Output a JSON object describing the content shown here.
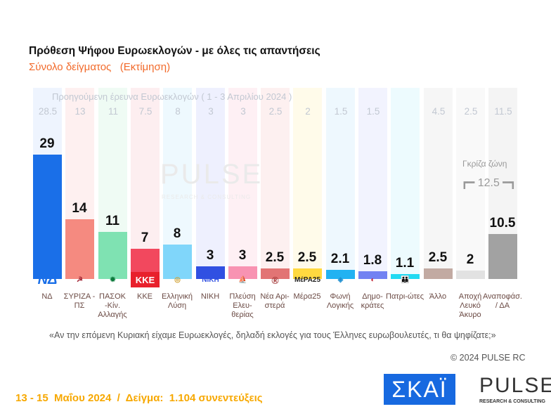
{
  "chart_data": {
    "type": "bar",
    "title": "Πρόθεση Ψήφου Ευρωεκλογών - με όλες τις απαντήσεις",
    "subtitle": "Σύνολο δείγματος   (Εκτίμηση)",
    "previous_label": "Προηγούμενη έρευνα Ευρωεκλογών ( 1 - 3 Απριλίου 2024 )",
    "categories": [
      "ΝΔ",
      "ΣΥΡΙΖΑ - ΠΣ",
      "ΠΑΣΟΚ -Κίν. Αλλαγής",
      "ΚΚΕ",
      "Ελληνική Λύση",
      "ΝΙΚΗ",
      "Πλεύση Ελευ-θερίας",
      "Νέα Αρι-στερά",
      "Μέρα25",
      "Φωνή Λογικής",
      "Δημο-κράτες",
      "Πατρι-ώτες",
      "Άλλο",
      "Αποχή Λευκό Άκυρο",
      "Αναποφάσ. / ΔΑ"
    ],
    "values": [
      29,
      14,
      11,
      7,
      8,
      3,
      3,
      2.5,
      2.5,
      2.1,
      1.8,
      1.1,
      2.5,
      2,
      10.5
    ],
    "value_labels": [
      "29",
      "14",
      "11",
      "7",
      "8",
      "3",
      "3",
      "2.5",
      "2.5",
      "2.1",
      "1.8",
      "1.1",
      "2.5",
      "2",
      "10.5"
    ],
    "previous": [
      "28.5",
      "13",
      "11",
      "7.5",
      "8",
      "3",
      "3",
      "2.5",
      "2",
      "1.5",
      "1.5",
      "",
      "4.5",
      "2.5",
      "11.5"
    ],
    "colors": [
      "#1a6fe8",
      "#f58a80",
      "#7fe2b2",
      "#f2485e",
      "#80d6fa",
      "#3050e2",
      "#f893b2",
      "#e27474",
      "#ffd940",
      "#22b2f2",
      "#7282f2",
      "#22daf2",
      "#c2aaa2",
      "#e2e2e2",
      "#a2a2a2"
    ],
    "band_colors": [
      "#eef4fe",
      "#fef0f0",
      "#effbf4",
      "#fdeef0",
      "#eef9fe",
      "#eef0fe",
      "#fef0f4",
      "#fdf0f0",
      "#fffbea",
      "#eef8fe",
      "#f2f3fe",
      "#edfbfe",
      "#f6f6f6",
      "#f9f9f9",
      "#f4f4f4"
    ],
    "logos": [
      "ΝΔ",
      "☭",
      "✹",
      "ΚΚΕ",
      "◎",
      "ΝΙΚΗ",
      "⛵",
      "Ⓡ",
      "ΜέΡΑ25",
      "◈",
      "◐",
      "👪",
      "",
      "",
      ""
    ],
    "logo_colors": [
      "#1a6fe8",
      "#a02030",
      "#0c7a3c",
      "#e8202c",
      "#d0a030",
      "#3050e2",
      "#c03070",
      "#a03030",
      "#222",
      "#2090d0",
      "#c02030",
      "#1a4a7a",
      "",
      "",
      ""
    ],
    "ylim": [
      0,
      30
    ],
    "grey_zone_label": "Γκρίζα ζώνη",
    "grey_zone_value": "12.5",
    "grid": false
  },
  "watermark": {
    "brand": "PULSE",
    "tag": "RESEARCH & CONSULTING"
  },
  "question": "«Αν την επόμενη Κυριακή είχαμε Ευρωεκλογές, δηλαδή εκλογές για τους Έλληνες ευρωβουλευτές, τι θα ψηφίζατε;»",
  "copyright": "© 2024 PULSE RC",
  "footer": "13 - 15  Μαΐου 2024  /  Δείγμα:  1.104 συνεντεύξεις",
  "logos": {
    "skai": "ΣΚΑΪ",
    "pulse": "PULSE",
    "pulse_tag": "RESEARCH & CONSULTING"
  }
}
